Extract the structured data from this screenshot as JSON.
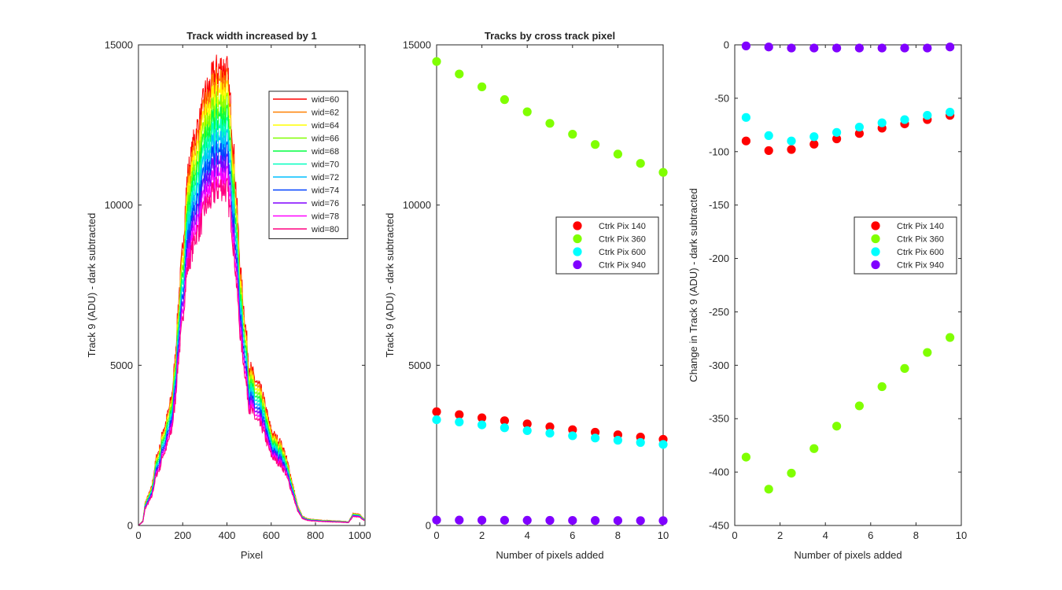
{
  "chart_data": [
    {
      "type": "line",
      "title": "Track width increased by 1",
      "xlabel": "Pixel",
      "ylabel": "Track 9 (ADU) - dark subtracted",
      "xlim": [
        0,
        1024
      ],
      "ylim": [
        0,
        15000
      ],
      "xticks": [
        0,
        200,
        400,
        600,
        800,
        1000
      ],
      "yticks": [
        0,
        5000,
        10000,
        15000
      ],
      "legend_position": "top-right",
      "profile_x": [
        0,
        20,
        30,
        60,
        80,
        100,
        110,
        120,
        130,
        150,
        165,
        180,
        200,
        220,
        240,
        260,
        280,
        300,
        320,
        340,
        360,
        380,
        400,
        420,
        440,
        460,
        480,
        500,
        520,
        540,
        560,
        580,
        600,
        620,
        640,
        660,
        680,
        700,
        720,
        740,
        760,
        780,
        800,
        850,
        900,
        950,
        970,
        1000,
        1020
      ],
      "profile_y": [
        0,
        150,
        700,
        1200,
        2100,
        2500,
        3000,
        3100,
        3400,
        4000,
        5100,
        6900,
        8700,
        10800,
        11500,
        12300,
        12600,
        13400,
        13600,
        14000,
        14200,
        14300,
        14150,
        12800,
        10600,
        8000,
        6500,
        5000,
        4650,
        4350,
        4100,
        3500,
        2950,
        2750,
        2600,
        2300,
        1800,
        1200,
        600,
        300,
        220,
        200,
        180,
        160,
        140,
        120,
        380,
        350,
        200
      ],
      "series": [
        {
          "name": "wid=60",
          "color": "#ff0000",
          "scale": 1.0
        },
        {
          "name": "wid=62",
          "color": "#ff8000",
          "scale": 0.974
        },
        {
          "name": "wid=64",
          "color": "#ffff00",
          "scale": 0.948
        },
        {
          "name": "wid=66",
          "color": "#80ff00",
          "scale": 0.922
        },
        {
          "name": "wid=68",
          "color": "#00ff40",
          "scale": 0.896
        },
        {
          "name": "wid=70",
          "color": "#00ffbf",
          "scale": 0.87
        },
        {
          "name": "wid=72",
          "color": "#00bfff",
          "scale": 0.844
        },
        {
          "name": "wid=74",
          "color": "#0040ff",
          "scale": 0.818
        },
        {
          "name": "wid=76",
          "color": "#8000ff",
          "scale": 0.792
        },
        {
          "name": "wid=78",
          "color": "#ff00ff",
          "scale": 0.766
        },
        {
          "name": "wid=80",
          "color": "#ff0080",
          "scale": 0.74
        }
      ]
    },
    {
      "type": "scatter",
      "title": "Tracks by cross track pixel",
      "xlabel": "Number of pixels added",
      "ylabel": "Track 9 (ADU) - dark subtracted",
      "xlim": [
        0,
        10
      ],
      "ylim": [
        0,
        15000
      ],
      "xticks": [
        0,
        2,
        4,
        6,
        8,
        10
      ],
      "yticks": [
        0,
        5000,
        10000,
        15000
      ],
      "legend_position": "right",
      "x": [
        0,
        1,
        2,
        3,
        4,
        5,
        6,
        7,
        8,
        9,
        10
      ],
      "series": [
        {
          "name": "Ctrk Pix 140",
          "color": "#ff0000",
          "values": [
            3550,
            3460,
            3360,
            3270,
            3170,
            3080,
            2990,
            2910,
            2830,
            2760,
            2690
          ]
        },
        {
          "name": "Ctrk Pix 360",
          "color": "#80ff00",
          "values": [
            14480,
            14090,
            13690,
            13290,
            12910,
            12550,
            12210,
            11890,
            11590,
            11300,
            11020
          ]
        },
        {
          "name": "Ctrk Pix 600",
          "color": "#00ffff",
          "values": [
            3300,
            3230,
            3140,
            3050,
            2960,
            2880,
            2800,
            2730,
            2660,
            2590,
            2530
          ]
        },
        {
          "name": "Ctrk Pix 940",
          "color": "#8000ff",
          "values": [
            170,
            168,
            166,
            164,
            162,
            160,
            158,
            156,
            154,
            152,
            150
          ]
        }
      ]
    },
    {
      "type": "scatter",
      "title": "",
      "xlabel": "Number of pixels added",
      "ylabel": "Change in Track 9 (ADU) - dark subtracted",
      "xlim": [
        0,
        10
      ],
      "ylim": [
        -450,
        0
      ],
      "xticks": [
        0,
        2,
        4,
        6,
        8,
        10
      ],
      "yticks": [
        -450,
        -400,
        -350,
        -300,
        -250,
        -200,
        -150,
        -100,
        -50,
        0
      ],
      "legend_position": "right",
      "x": [
        0.5,
        1.5,
        2.5,
        3.5,
        4.5,
        5.5,
        6.5,
        7.5,
        8.5,
        9.5
      ],
      "series": [
        {
          "name": "Ctrk Pix 140",
          "color": "#ff0000",
          "values": [
            -90,
            -99,
            -98,
            -93,
            -88,
            -83,
            -78,
            -74,
            -70,
            -66
          ]
        },
        {
          "name": "Ctrk Pix 360",
          "color": "#80ff00",
          "values": [
            -386,
            -416,
            -401,
            -378,
            -357,
            -338,
            -320,
            -303,
            -288,
            -274
          ]
        },
        {
          "name": "Ctrk Pix 600",
          "color": "#00ffff",
          "values": [
            -68,
            -85,
            -90,
            -86,
            -82,
            -77,
            -73,
            -70,
            -66,
            -63
          ]
        },
        {
          "name": "Ctrk Pix 940",
          "color": "#8000ff",
          "values": [
            -1,
            -2,
            -3,
            -3,
            -3,
            -3,
            -3,
            -3,
            -3,
            -2
          ]
        }
      ]
    }
  ]
}
